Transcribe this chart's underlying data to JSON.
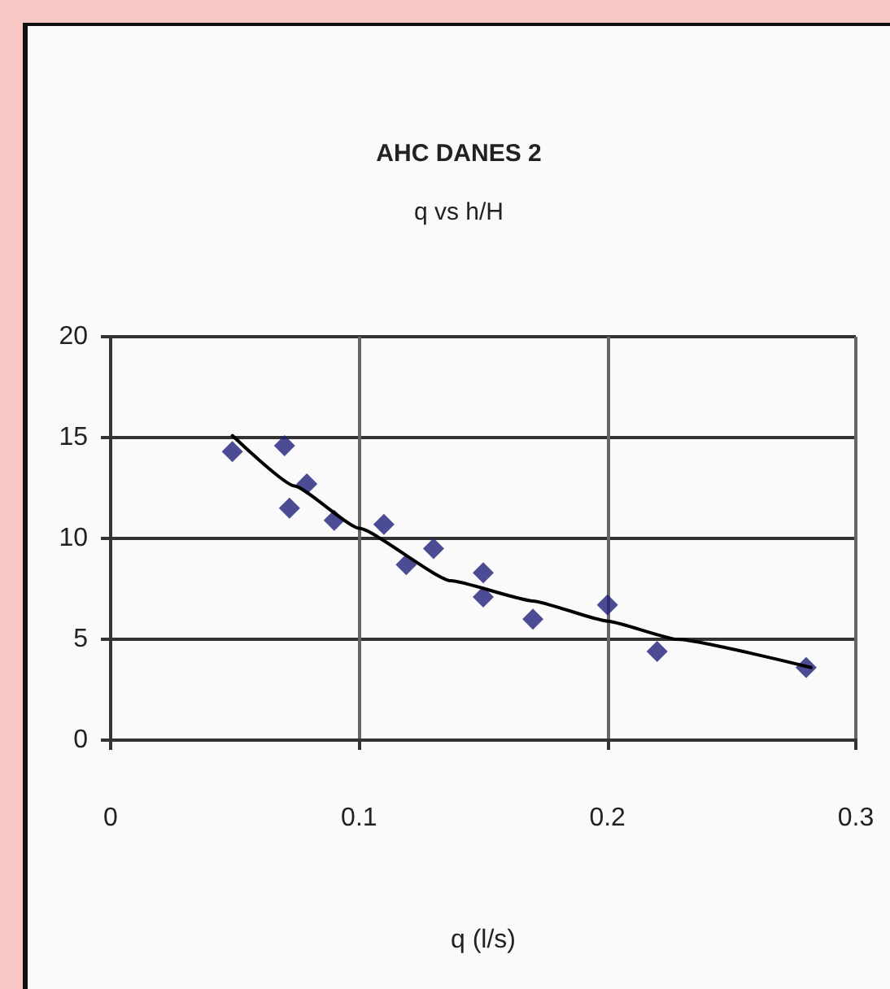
{
  "chart_data": {
    "type": "scatter",
    "title": "AHC DANES 2",
    "subtitle": "q vs h/H",
    "xlabel": "q (l/s)",
    "xlim": [
      0,
      0.3
    ],
    "xticks": [
      0,
      0.1,
      0.2,
      0.3
    ],
    "ylim": [
      0,
      20
    ],
    "yticks": [
      0,
      5,
      10,
      15,
      20
    ],
    "grid": true,
    "series": [
      {
        "color": "#20207a",
        "marker": "diamond",
        "x": [
          0.049,
          0.07,
          0.079,
          0.072,
          0.09,
          0.11,
          0.119,
          0.13,
          0.15,
          0.15,
          0.17,
          0.2,
          0.22,
          0.28
        ],
        "values": [
          14.3,
          14.6,
          12.7,
          11.5,
          10.9,
          10.7,
          8.7,
          9.5,
          8.3,
          7.1,
          6.0,
          6.7,
          4.4,
          3.6
        ]
      },
      {
        "type": "line",
        "color": "#000000",
        "marker": "none",
        "x": [
          0.049,
          0.074,
          0.1,
          0.137,
          0.17,
          0.2,
          0.228,
          0.282
        ],
        "values": [
          15.1,
          12.6,
          10.5,
          7.9,
          6.9,
          5.9,
          5.0,
          3.6
        ]
      }
    ]
  }
}
